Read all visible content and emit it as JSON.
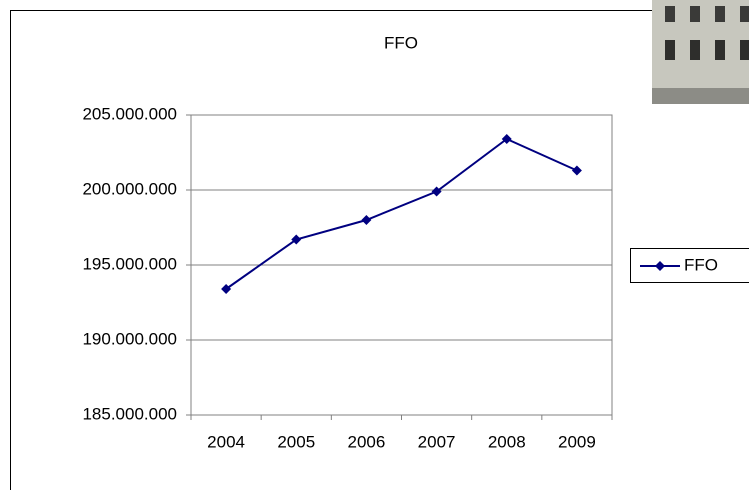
{
  "chart_data": {
    "type": "line",
    "title": "FFO",
    "categories": [
      "2004",
      "2005",
      "2006",
      "2007",
      "2008",
      "2009"
    ],
    "series": [
      {
        "name": "FFO",
        "color": "#000080",
        "values": [
          193400000,
          196700000,
          198000000,
          199900000,
          203400000,
          201300000
        ]
      }
    ],
    "ylim": [
      185000000,
      205000000
    ],
    "yticks": [
      {
        "value": 185000000,
        "label": "185.000.000"
      },
      {
        "value": 190000000,
        "label": "190.000.000"
      },
      {
        "value": 195000000,
        "label": "195.000.000"
      },
      {
        "value": 200000000,
        "label": "200.000.000"
      },
      {
        "value": 205000000,
        "label": "205.000.000"
      }
    ],
    "grid": true,
    "legend": "right"
  }
}
